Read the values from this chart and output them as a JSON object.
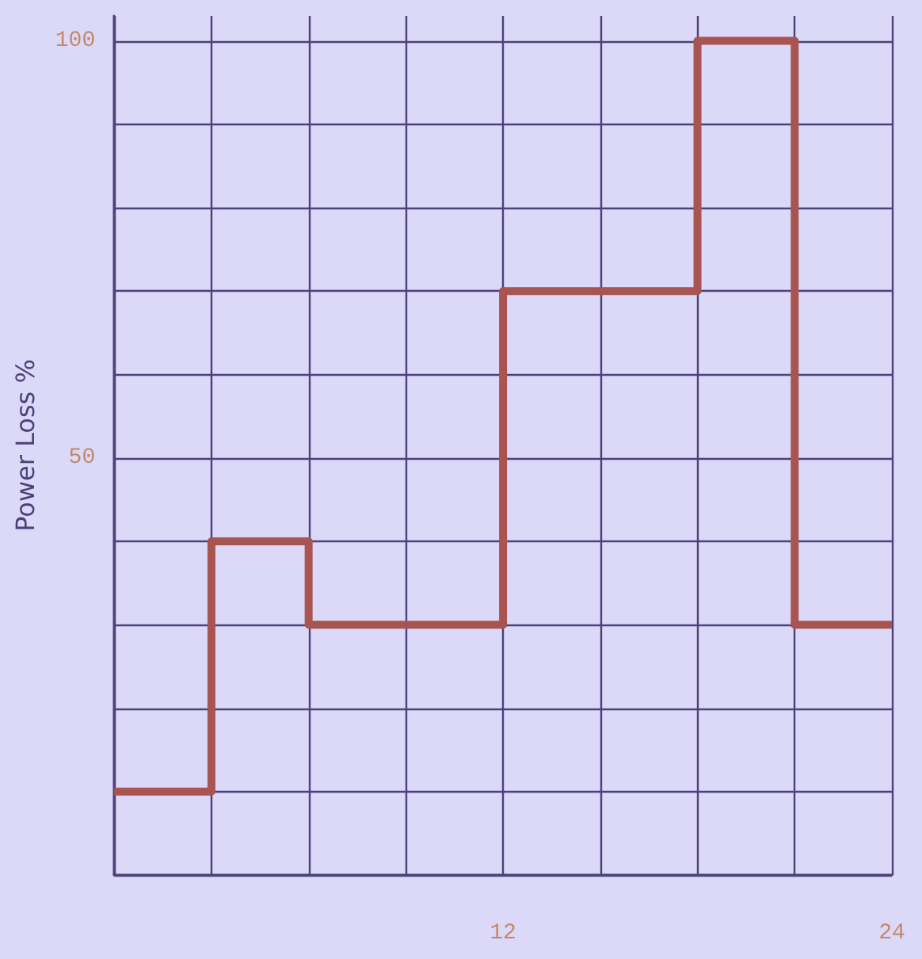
{
  "chart_data": {
    "type": "step",
    "ylabel": "Power Loss %",
    "x": [
      0,
      3,
      6,
      12,
      18,
      21,
      24
    ],
    "series": [
      {
        "color": "#a85450",
        "values": [
          10,
          40,
          30,
          70,
          100,
          30,
          30
        ]
      }
    ],
    "xlim": [
      0,
      24
    ],
    "ylim": [
      0,
      103
    ],
    "xticks": [
      {
        "value": 0,
        "label": null
      },
      {
        "value": 3,
        "label": null
      },
      {
        "value": 6,
        "label": null
      },
      {
        "value": 9,
        "label": null
      },
      12,
      {
        "value": 15,
        "label": null
      },
      {
        "value": 18,
        "label": null
      },
      {
        "value": 21,
        "label": null
      },
      24
    ],
    "yticks": [
      {
        "value": 0,
        "label": null
      },
      {
        "value": 10,
        "label": null
      },
      {
        "value": 20,
        "label": null
      },
      {
        "value": 30,
        "label": null
      },
      {
        "value": 40,
        "label": null
      },
      50,
      {
        "value": 60,
        "label": null
      },
      {
        "value": 70,
        "label": null
      },
      {
        "value": 80,
        "label": null
      },
      {
        "value": 90,
        "label": null
      },
      100
    ],
    "grid": true,
    "marker": "none",
    "line_style": "solid"
  }
}
